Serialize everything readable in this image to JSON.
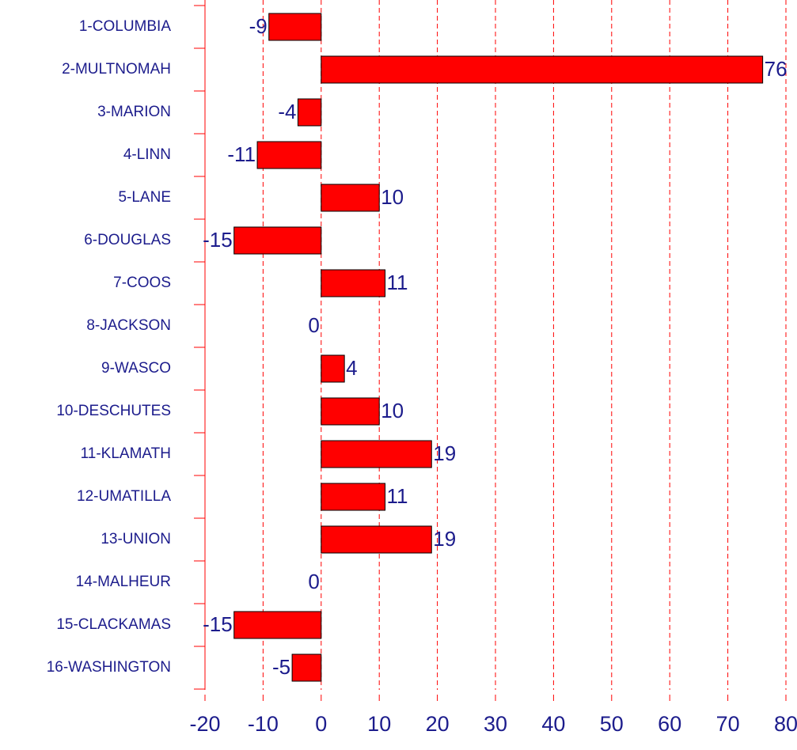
{
  "chart_data": {
    "type": "bar",
    "orientation": "horizontal",
    "categories": [
      "1-COLUMBIA",
      "2-MULTNOMAH",
      "3-MARION",
      "4-LINN",
      "5-LANE",
      "6-DOUGLAS",
      "7-COOS",
      "8-JACKSON",
      "9-WASCO",
      "10-DESCHUTES",
      "11-KLAMATH",
      "12-UMATILLA",
      "13-UNION",
      "14-MALHEUR",
      "15-CLACKAMAS",
      "16-WASHINGTON"
    ],
    "values": [
      -9,
      76,
      -4,
      -11,
      10,
      -15,
      11,
      0,
      4,
      10,
      19,
      11,
      19,
      0,
      -15,
      -5
    ],
    "color": "#ff0000",
    "xlim": [
      -20,
      80
    ],
    "xticks": [
      -20,
      -10,
      0,
      10,
      20,
      30,
      40,
      50,
      60,
      70,
      80
    ],
    "grid": true
  }
}
